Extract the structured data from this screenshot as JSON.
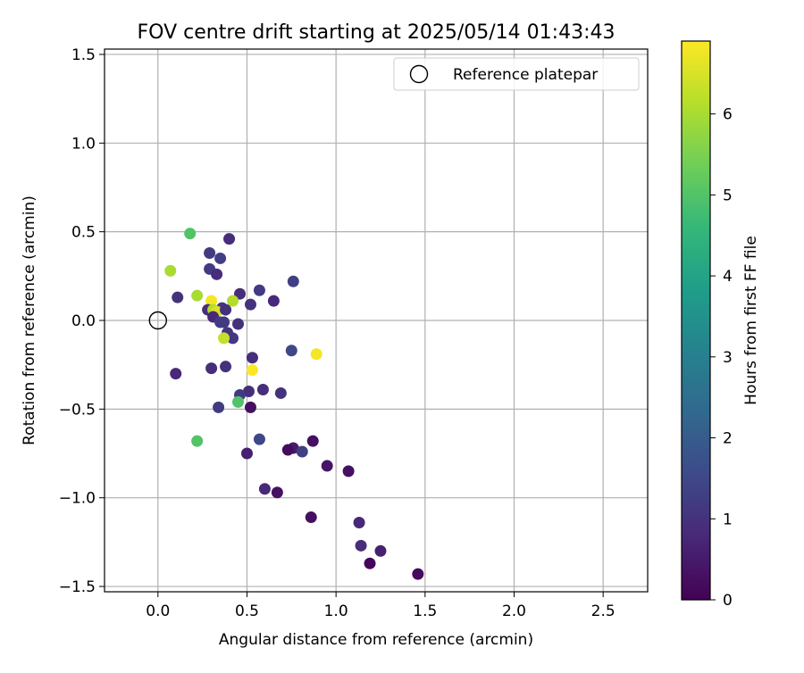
{
  "chart_data": {
    "type": "scatter",
    "title": "FOV centre drift starting at 2025/05/14 01:43:43",
    "xlabel": "Angular distance from reference (arcmin)",
    "ylabel": "Rotation from reference (arcmin)",
    "xlim": [
      -0.3,
      2.75
    ],
    "ylim": [
      -1.53,
      1.53
    ],
    "xticks": [
      0.0,
      0.5,
      1.0,
      1.5,
      2.0,
      2.5
    ],
    "xtick_labels": [
      "0.0",
      "0.5",
      "1.0",
      "1.5",
      "2.0",
      "2.5"
    ],
    "yticks": [
      1.5,
      1.0,
      0.5,
      0.0,
      -0.5,
      -1.0,
      -1.5
    ],
    "ytick_labels": [
      "1.5",
      "1.0",
      "0.5",
      "0.0",
      "−0.5",
      "−1.0",
      "−1.5"
    ],
    "grid": true,
    "legend": {
      "position": "top-right",
      "label": "Reference platepar"
    },
    "reference_point": {
      "x": 0.0,
      "y": 0.0
    },
    "colorbar": {
      "label": "Hours from first FF file",
      "range": [
        0,
        6.9
      ],
      "ticks": [
        0,
        1,
        2,
        3,
        4,
        5,
        6
      ],
      "tick_labels": [
        "0",
        "1",
        "2",
        "3",
        "4",
        "5",
        "6"
      ],
      "colormap": [
        "#440154",
        "#482878",
        "#3e4989",
        "#31688e",
        "#26828e",
        "#1f9e89",
        "#35b779",
        "#6ece58",
        "#b5de2b",
        "#fde725"
      ]
    },
    "points": [
      {
        "x": 0.18,
        "y": 0.49,
        "h": 5.0
      },
      {
        "x": 0.4,
        "y": 0.46,
        "h": 0.9
      },
      {
        "x": 0.29,
        "y": 0.38,
        "h": 1.2
      },
      {
        "x": 0.35,
        "y": 0.35,
        "h": 1.3
      },
      {
        "x": 0.29,
        "y": 0.29,
        "h": 1.2
      },
      {
        "x": 0.07,
        "y": 0.28,
        "h": 6.0
      },
      {
        "x": 0.33,
        "y": 0.26,
        "h": 0.9
      },
      {
        "x": 0.76,
        "y": 0.22,
        "h": 1.3
      },
      {
        "x": 0.57,
        "y": 0.17,
        "h": 1.2
      },
      {
        "x": 0.46,
        "y": 0.15,
        "h": 0.9
      },
      {
        "x": 0.11,
        "y": 0.13,
        "h": 1.0
      },
      {
        "x": 0.22,
        "y": 0.14,
        "h": 6.0
      },
      {
        "x": 0.65,
        "y": 0.11,
        "h": 0.8
      },
      {
        "x": 0.3,
        "y": 0.11,
        "h": 6.8
      },
      {
        "x": 0.42,
        "y": 0.11,
        "h": 6.1
      },
      {
        "x": 0.52,
        "y": 0.09,
        "h": 1.0
      },
      {
        "x": 0.28,
        "y": 0.06,
        "h": 0.9
      },
      {
        "x": 0.36,
        "y": 0.07,
        "h": 1.1
      },
      {
        "x": 0.31,
        "y": 0.06,
        "h": 6.1
      },
      {
        "x": 0.33,
        "y": 0.05,
        "h": 6.5
      },
      {
        "x": 0.38,
        "y": 0.06,
        "h": 1.0
      },
      {
        "x": 0.31,
        "y": 0.02,
        "h": 0.8
      },
      {
        "x": 0.35,
        "y": -0.01,
        "h": 1.2
      },
      {
        "x": 0.45,
        "y": -0.02,
        "h": 1.0
      },
      {
        "x": 0.37,
        "y": -0.01,
        "h": 1.2
      },
      {
        "x": 0.39,
        "y": -0.07,
        "h": 1.1
      },
      {
        "x": 0.42,
        "y": -0.1,
        "h": 1.1
      },
      {
        "x": 0.37,
        "y": -0.1,
        "h": 6.3
      },
      {
        "x": 0.75,
        "y": -0.17,
        "h": 1.5
      },
      {
        "x": 0.89,
        "y": -0.19,
        "h": 6.8
      },
      {
        "x": 0.53,
        "y": -0.21,
        "h": 0.9
      },
      {
        "x": 0.38,
        "y": -0.26,
        "h": 1.0
      },
      {
        "x": 0.3,
        "y": -0.27,
        "h": 0.9
      },
      {
        "x": 0.53,
        "y": -0.28,
        "h": 6.9
      },
      {
        "x": 0.1,
        "y": -0.3,
        "h": 0.8
      },
      {
        "x": 0.59,
        "y": -0.39,
        "h": 0.9
      },
      {
        "x": 0.51,
        "y": -0.4,
        "h": 0.9
      },
      {
        "x": 0.69,
        "y": -0.41,
        "h": 1.0
      },
      {
        "x": 0.46,
        "y": -0.42,
        "h": 1.2
      },
      {
        "x": 0.45,
        "y": -0.46,
        "h": 5.0
      },
      {
        "x": 0.34,
        "y": -0.49,
        "h": 1.2
      },
      {
        "x": 0.52,
        "y": -0.49,
        "h": 0.3
      },
      {
        "x": 0.57,
        "y": -0.67,
        "h": 1.5
      },
      {
        "x": 0.22,
        "y": -0.68,
        "h": 5.0
      },
      {
        "x": 0.87,
        "y": -0.68,
        "h": 0.3
      },
      {
        "x": 0.76,
        "y": -0.72,
        "h": 0.5
      },
      {
        "x": 0.73,
        "y": -0.73,
        "h": 0.2
      },
      {
        "x": 0.81,
        "y": -0.74,
        "h": 1.3
      },
      {
        "x": 0.5,
        "y": -0.75,
        "h": 0.6
      },
      {
        "x": 0.95,
        "y": -0.82,
        "h": 0.4
      },
      {
        "x": 1.07,
        "y": -0.85,
        "h": 0.3
      },
      {
        "x": 0.6,
        "y": -0.95,
        "h": 0.8
      },
      {
        "x": 0.67,
        "y": -0.97,
        "h": 0.3
      },
      {
        "x": 0.86,
        "y": -1.11,
        "h": 0.3
      },
      {
        "x": 1.13,
        "y": -1.14,
        "h": 0.8
      },
      {
        "x": 1.14,
        "y": -1.27,
        "h": 0.9
      },
      {
        "x": 1.25,
        "y": -1.3,
        "h": 0.6
      },
      {
        "x": 1.19,
        "y": -1.37,
        "h": 0.1
      },
      {
        "x": 1.46,
        "y": -1.43,
        "h": 0.2
      }
    ]
  }
}
